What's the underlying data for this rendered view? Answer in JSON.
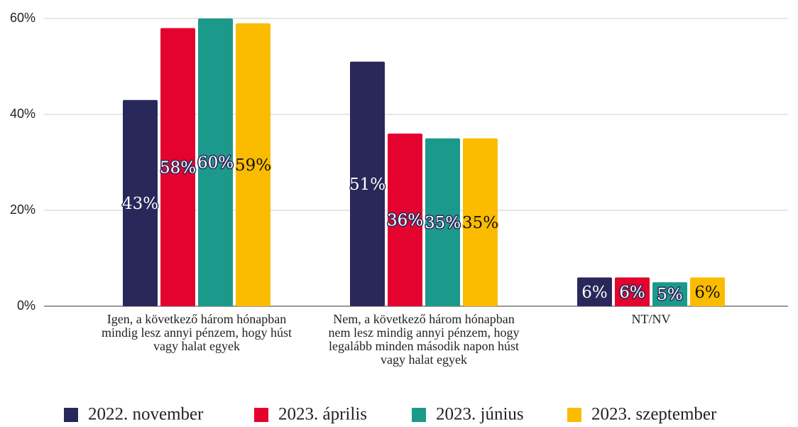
{
  "chart_data": {
    "type": "bar",
    "categories": [
      "Igen, a következő három hónapban mindig lesz annyi pénzem, hogy húst vagy halat egyek",
      "Nem, a következő három hónapban nem lesz mindig annyi pénzem, hogy legalább minden második napon húst vagy halat egyek",
      "NT/NV"
    ],
    "series": [
      {
        "name": "2022. november",
        "color": "#29285a",
        "values": [
          43,
          51,
          6
        ],
        "value_labels": [
          "43%",
          "51%",
          "6%"
        ]
      },
      {
        "name": "2023. április",
        "color": "#e4032e",
        "values": [
          58,
          36,
          6
        ],
        "value_labels": [
          "58%",
          "36%",
          "6%"
        ]
      },
      {
        "name": "2023. június",
        "color": "#1b9a8b",
        "values": [
          60,
          35,
          5
        ],
        "value_labels": [
          "60%",
          "35%",
          "5%"
        ]
      },
      {
        "name": "2023. szeptember",
        "color": "#fbbc00",
        "values": [
          59,
          35,
          6
        ],
        "value_labels": [
          "59%",
          "35%",
          "6%"
        ]
      }
    ],
    "ylim": [
      0,
      60
    ],
    "yticks": [
      {
        "value": 0,
        "label": "0%"
      },
      {
        "value": 20,
        "label": "20%"
      },
      {
        "value": 40,
        "label": "40%"
      },
      {
        "value": 60,
        "label": "60%"
      }
    ],
    "grid": true,
    "legend": "bottom"
  }
}
